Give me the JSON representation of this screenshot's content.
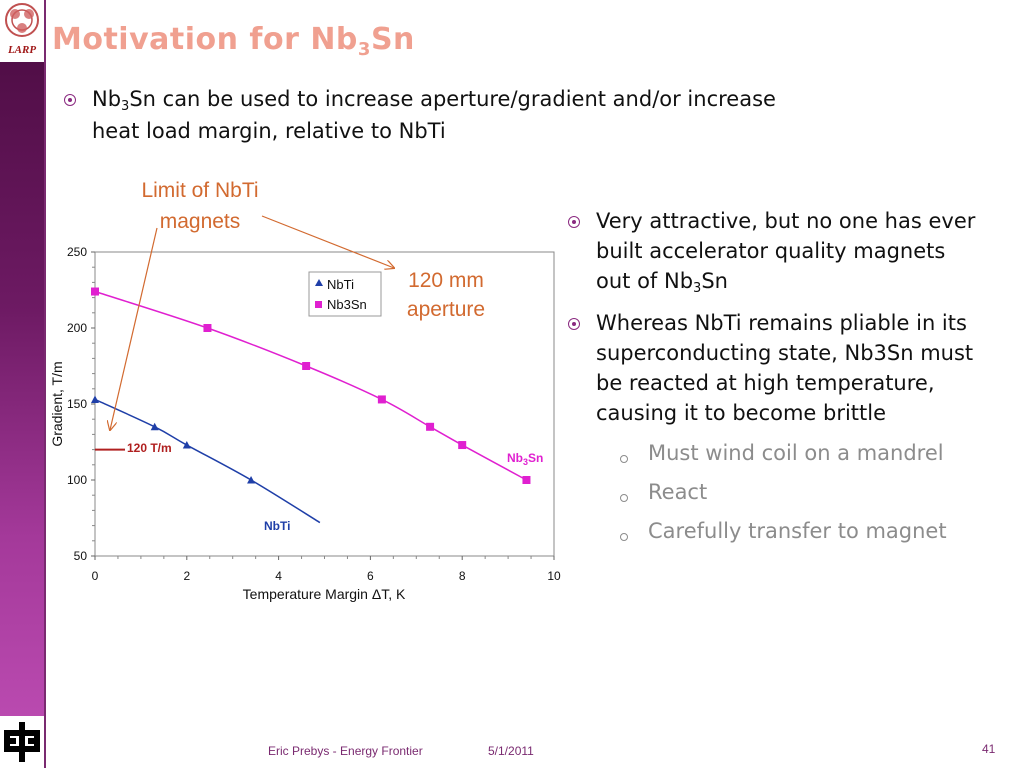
{
  "slide": {
    "title_main": "Motivation for Nb",
    "title_sub": "3",
    "title_tail": "Sn",
    "logo_text": "LARP",
    "bullet1": {
      "pre": "Nb",
      "sub": "3",
      "line1_post": "Sn can be used to increase aperture/gradient and/or increase",
      "line2": "heat load margin, relative to NbTi"
    },
    "right_bullets": [
      {
        "lines": [
          "Very attractive, but no one has ever",
          "built accelerator quality magnets"
        ],
        "last_pre": "out of Nb",
        "last_sub": "3",
        "last_post": "Sn"
      },
      {
        "lines": [
          "Whereas NbTi remains pliable in its",
          "superconducting state, Nb3Sn must",
          "be reacted at high temperature,",
          "causing it to become brittle"
        ]
      }
    ],
    "sub_bullets": [
      "Must wind coil on a mandrel",
      "React",
      "Carefully transfer to magnet"
    ],
    "footer_author": "Eric Prebys - Energy Frontier",
    "footer_date": "5/1/2011",
    "page_number": "41",
    "colors": {
      "accent": "#7a2a70",
      "title": "#f0a090",
      "annotation": "#d26a30"
    }
  },
  "chart_data": {
    "type": "line",
    "xlabel_main": "Temperature Margin ",
    "xlabel_delta": "Δ",
    "xlabel_tail": "T, K",
    "ylabel": "Gradient, T/m",
    "xlim": [
      0,
      10
    ],
    "ylim": [
      50,
      250
    ],
    "xticks": [
      0,
      2,
      4,
      6,
      8,
      10
    ],
    "yticks": [
      50,
      100,
      150,
      200,
      250
    ],
    "series": [
      {
        "name": "NbTi",
        "color": "#1f3fa8",
        "marker": "triangle",
        "points": [
          [
            0,
            153
          ],
          [
            1.3,
            135
          ],
          [
            2.0,
            123
          ],
          [
            3.4,
            100
          ]
        ],
        "curve": [
          [
            0,
            153
          ],
          [
            1.3,
            135
          ],
          [
            2.0,
            123
          ],
          [
            3.4,
            100
          ],
          [
            4.9,
            72
          ]
        ],
        "label": "NbTi"
      },
      {
        "name": "Nb3Sn",
        "color": "#e020d0",
        "marker": "square",
        "points": [
          [
            0,
            224
          ],
          [
            2.45,
            200
          ],
          [
            4.6,
            175
          ],
          [
            6.25,
            153
          ],
          [
            7.3,
            135
          ],
          [
            8.0,
            123
          ],
          [
            9.4,
            100
          ]
        ],
        "curve": [
          [
            0,
            224
          ],
          [
            2.45,
            200
          ],
          [
            4.6,
            175
          ],
          [
            6.25,
            153
          ],
          [
            7.3,
            135
          ],
          [
            8.0,
            123
          ],
          [
            9.4,
            100
          ]
        ],
        "label_pre": "Nb",
        "label_sub": "3",
        "label_post": "Sn"
      }
    ],
    "reference": {
      "value": 120,
      "label": "120 T/m",
      "color": "#b02020"
    },
    "annotations": {
      "nbti_limit": [
        "Limit of NbTi",
        "magnets"
      ],
      "aperture": [
        "120 mm",
        "aperture"
      ]
    },
    "legend": [
      "NbTi",
      "Nb3Sn"
    ],
    "legend_position": "top-right"
  }
}
